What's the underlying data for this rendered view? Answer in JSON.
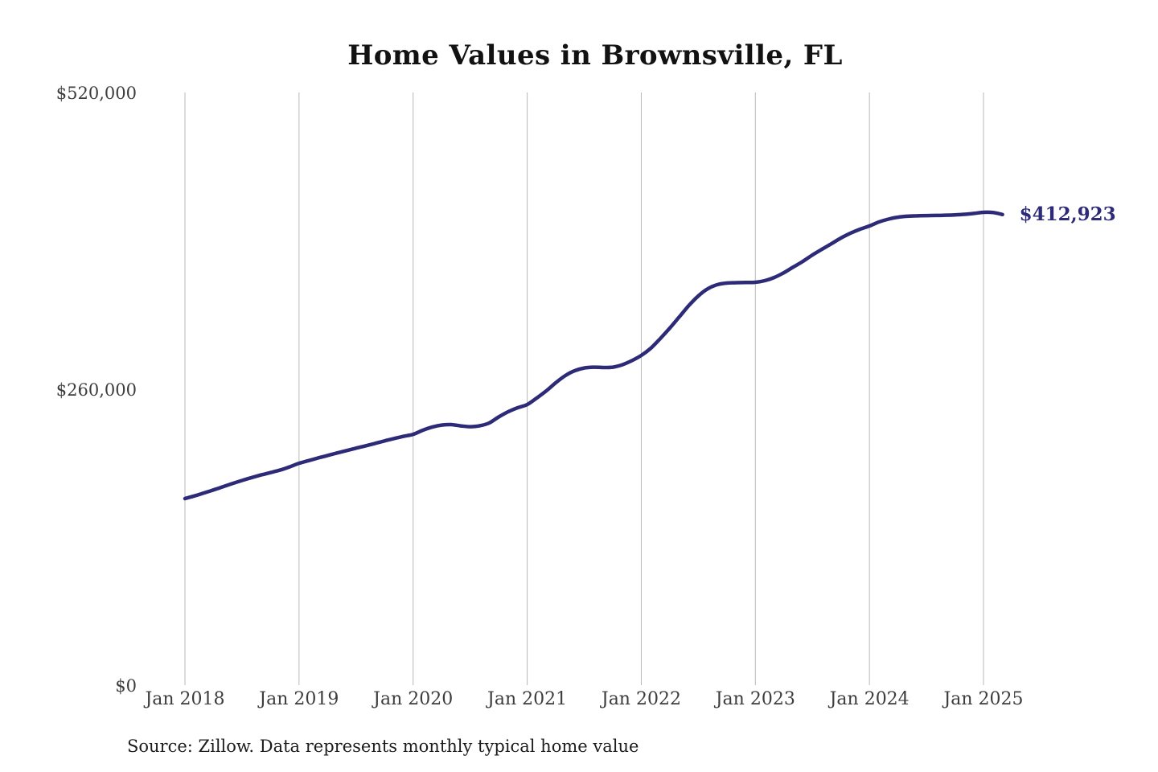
{
  "title": "Home Values in Brownsville, FL",
  "latest_value_label": "$412,923",
  "source": "Source: Zillow. Data represents monthly typical home value",
  "colors": {
    "line": "#2d2a78",
    "latest_label": "#2d2a78",
    "grid": "#b8b8b8",
    "axis_text": "#3d3d3d",
    "title_text": "#121212",
    "background": "#ffffff"
  },
  "chart_data": {
    "type": "line",
    "title": "Home Values in Brownsville, FL",
    "xlabel": "",
    "ylabel": "",
    "ylim": [
      0,
      520000
    ],
    "grid": "vertical-only",
    "legend": "none",
    "y_tick_labels": [
      "$0",
      "$260,000",
      "$520,000"
    ],
    "y_tick_values": [
      0,
      260000,
      520000
    ],
    "x_tick_labels": [
      "Jan 2018",
      "Jan 2019",
      "Jan 2020",
      "Jan 2021",
      "Jan 2022",
      "Jan 2023",
      "Jan 2024",
      "Jan 2025"
    ],
    "final_value": 412923,
    "final_point_label": "$412,923",
    "series": [
      {
        "name": "Monthly typical home value",
        "x": [
          "2018-01",
          "2018-02",
          "2018-03",
          "2018-04",
          "2018-05",
          "2018-06",
          "2018-07",
          "2018-08",
          "2018-09",
          "2018-10",
          "2018-11",
          "2018-12",
          "2019-01",
          "2019-02",
          "2019-03",
          "2019-04",
          "2019-05",
          "2019-06",
          "2019-07",
          "2019-08",
          "2019-09",
          "2019-10",
          "2019-11",
          "2019-12",
          "2020-01",
          "2020-02",
          "2020-03",
          "2020-04",
          "2020-05",
          "2020-06",
          "2020-07",
          "2020-08",
          "2020-09",
          "2020-10",
          "2020-11",
          "2020-12",
          "2021-01",
          "2021-02",
          "2021-03",
          "2021-04",
          "2021-05",
          "2021-06",
          "2021-07",
          "2021-08",
          "2021-09",
          "2021-10",
          "2021-11",
          "2021-12",
          "2022-01",
          "2022-02",
          "2022-03",
          "2022-04",
          "2022-05",
          "2022-06",
          "2022-07",
          "2022-08",
          "2022-09",
          "2022-10",
          "2022-11",
          "2022-12",
          "2023-01",
          "2023-02",
          "2023-03",
          "2023-04",
          "2023-05",
          "2023-06",
          "2023-07",
          "2023-08",
          "2023-09",
          "2023-10",
          "2023-11",
          "2023-12",
          "2024-01",
          "2024-02",
          "2024-03",
          "2024-04",
          "2024-05",
          "2024-06",
          "2024-07",
          "2024-08",
          "2024-09",
          "2024-10",
          "2024-11",
          "2024-12",
          "2025-01",
          "2025-02",
          "2025-03"
        ],
        "values": [
          163700,
          166000,
          168600,
          171300,
          174100,
          176900,
          179600,
          182100,
          184400,
          186500,
          188700,
          191500,
          194700,
          197000,
          199300,
          201500,
          203700,
          205800,
          207900,
          210000,
          212100,
          214300,
          216400,
          218300,
          220100,
          223600,
          226400,
          228200,
          228600,
          227500,
          226800,
          227600,
          230000,
          235300,
          239900,
          243400,
          246200,
          251900,
          258200,
          265300,
          271600,
          275900,
          278300,
          279000,
          278700,
          279000,
          281100,
          284700,
          289300,
          295600,
          304100,
          313300,
          323100,
          333000,
          341500,
          347800,
          351400,
          352800,
          353100,
          353300,
          353500,
          354900,
          357700,
          361900,
          366900,
          371800,
          377400,
          382400,
          387300,
          392300,
          396500,
          400000,
          402900,
          406400,
          408900,
          410600,
          411400,
          411800,
          412000,
          412100,
          412300,
          412600,
          413100,
          413900,
          414900,
          414700,
          412923
        ]
      }
    ]
  }
}
